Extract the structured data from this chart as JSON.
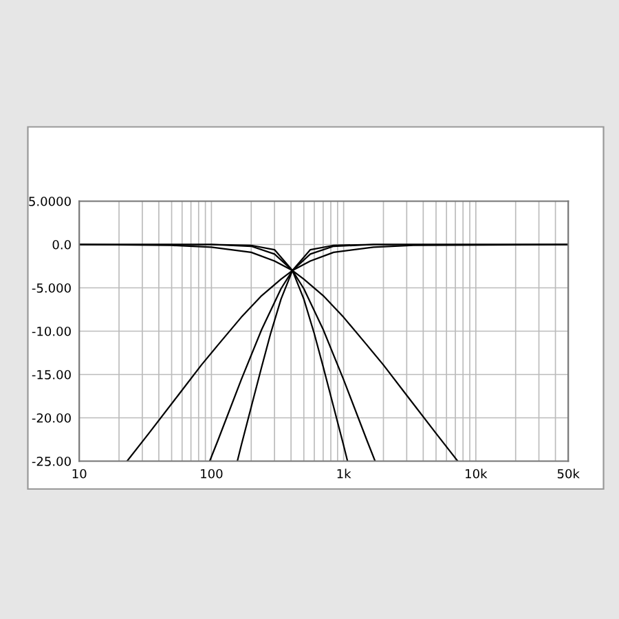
{
  "chart_data": {
    "type": "line",
    "log": "x",
    "grid": true,
    "marker": "none",
    "line_style": "solid",
    "xlim": [
      10,
      50000
    ],
    "ylim": [
      -25,
      5
    ],
    "xticks": [
      10,
      100,
      {
        "value": 1000,
        "label": "1k"
      },
      {
        "value": 10000,
        "label": "10k"
      },
      {
        "value": 50000,
        "label": "50k"
      }
    ],
    "yticks": [
      {
        "value": 5,
        "label": "5.0000"
      },
      {
        "value": 0,
        "label": "0.0"
      },
      {
        "value": -5,
        "label": "-5.000"
      },
      {
        "value": -10,
        "label": "-10.00"
      },
      {
        "value": -15,
        "label": "-15.00"
      },
      {
        "value": -20,
        "label": "-20.00"
      },
      {
        "value": -25,
        "label": "-25.00"
      }
    ],
    "series": [
      {
        "color": "#000000",
        "x": [
          10,
          50,
          100,
          200,
          300,
          410,
          500,
          700,
          1000,
          1500,
          2000,
          3000,
          5000,
          7300
        ],
        "values": [
          0,
          -0.1,
          -0.3,
          -0.9,
          -1.9,
          -3,
          -4,
          -5.9,
          -8.4,
          -11.6,
          -13.9,
          -17.4,
          -21.8,
          -25
        ]
      },
      {
        "color": "#000000",
        "x": [
          10,
          100,
          200,
          300,
          410,
          500,
          700,
          1000,
          1500,
          1730
        ],
        "values": [
          0,
          0,
          -0.2,
          -1.1,
          -3,
          -5.1,
          -9.8,
          -15.6,
          -22.6,
          -25
        ]
      },
      {
        "color": "#000000",
        "x": [
          10,
          100,
          200,
          300,
          410,
          500,
          600,
          700,
          800,
          1000,
          1070
        ],
        "values": [
          0,
          0,
          -0.1,
          -0.6,
          -3,
          -6.3,
          -10.3,
          -14.1,
          -17.5,
          -23.2,
          -25
        ]
      },
      {
        "color": "#000000",
        "x": [
          23,
          33.6,
          56,
          84,
          112,
          168,
          240,
          336,
          410,
          560,
          840,
          1681,
          3362,
          50000
        ],
        "values": [
          -25,
          -21.8,
          -17.4,
          -13.9,
          -11.6,
          -8.4,
          -5.9,
          -4,
          -3,
          -1.9,
          -0.9,
          -0.3,
          -0.1,
          0
        ]
      },
      {
        "color": "#000000",
        "x": [
          97,
          112,
          168,
          240,
          336,
          410,
          560,
          840,
          1681,
          50000
        ],
        "values": [
          -25,
          -22.6,
          -15.6,
          -9.8,
          -5.1,
          -3,
          -1.1,
          -0.2,
          0,
          0
        ]
      },
      {
        "color": "#000000",
        "x": [
          157,
          168,
          210,
          240,
          280,
          336,
          410,
          560,
          840,
          1681,
          50000
        ],
        "values": [
          -25,
          -23.2,
          -17.5,
          -14.1,
          -10.3,
          -6.3,
          -3,
          -0.6,
          -0.1,
          0,
          0
        ]
      }
    ]
  }
}
